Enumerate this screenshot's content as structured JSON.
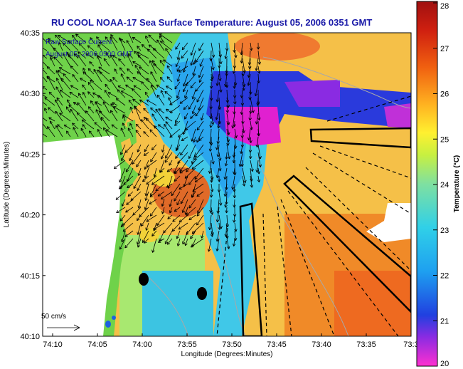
{
  "title": "RU COOL  NOAA-17  Sea Surface Temperature:  August 05, 2006 0351 GMT",
  "legend": {
    "line1": "Raw Surface Current",
    "line2": "August 05, 2006 0500 GMT"
  },
  "axes": {
    "xlabel": "Longitude (Degrees:Minutes)",
    "ylabel": "Latitude (Degrees:Minutes)",
    "x_ticks": [
      "74:10",
      "74:05",
      "74:00",
      "73:55",
      "73:50",
      "73:45",
      "73:40",
      "73:35",
      "73:3"
    ],
    "y_ticks": [
      "40:35",
      "40:30",
      "40:25",
      "40:20",
      "40:15",
      "40:10"
    ]
  },
  "colorbar": {
    "label": "Temperature (°C)",
    "ticks": [
      "28",
      "27",
      "26",
      "25",
      "24",
      "23",
      "22",
      "21",
      "20"
    ],
    "min": 20,
    "max": 28
  },
  "scale_arrow": {
    "label": "50 cm/s"
  },
  "colors": {
    "land": "#6fd24a",
    "title": "#1a1aa8",
    "warm": "#e8641a",
    "cool": "#34c6e6",
    "cold": "#e020d0"
  }
}
